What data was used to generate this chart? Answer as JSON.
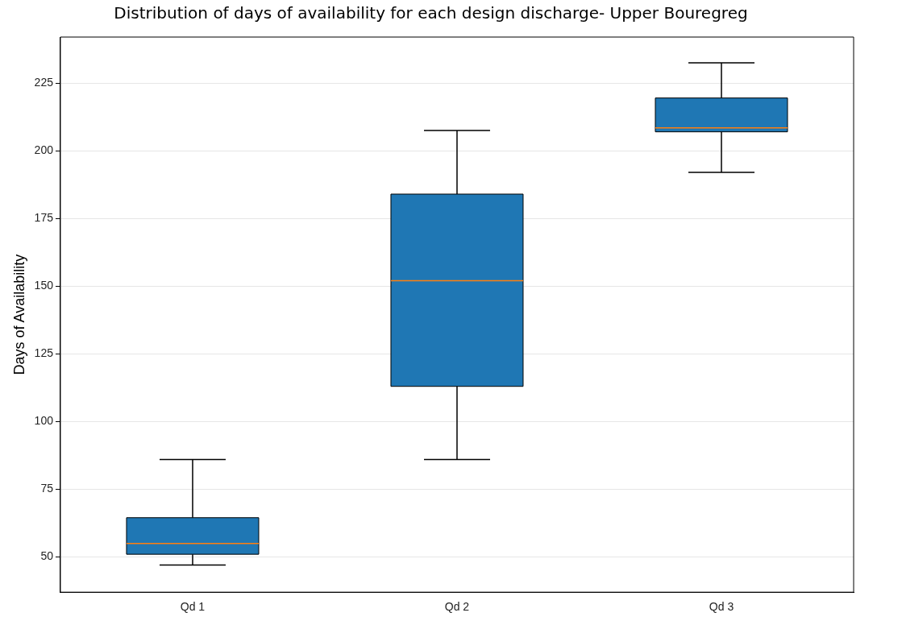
{
  "chart_data": {
    "type": "box",
    "title": "Distribution of days of availability for each design discharge- Upper Bouregreg",
    "ylabel": "Days of Availability",
    "categories": [
      "Qd 1",
      "Qd 2",
      "Qd 3"
    ],
    "series": [
      {
        "color": "#1f77b4",
        "boxes": [
          {
            "low": 47,
            "q1": 51,
            "median": 55,
            "q3": 64.5,
            "high": 86
          },
          {
            "low": 86,
            "q1": 113,
            "median": 152,
            "q3": 184,
            "high": 207.5
          },
          {
            "low": 192,
            "q1": 207,
            "median": 208.5,
            "q3": 219.5,
            "high": 232.5
          }
        ]
      }
    ],
    "ylim": [
      37,
      242
    ],
    "yticks": [
      50,
      75,
      100,
      125,
      150,
      175,
      200,
      225
    ],
    "grid": "y",
    "legend": false
  }
}
